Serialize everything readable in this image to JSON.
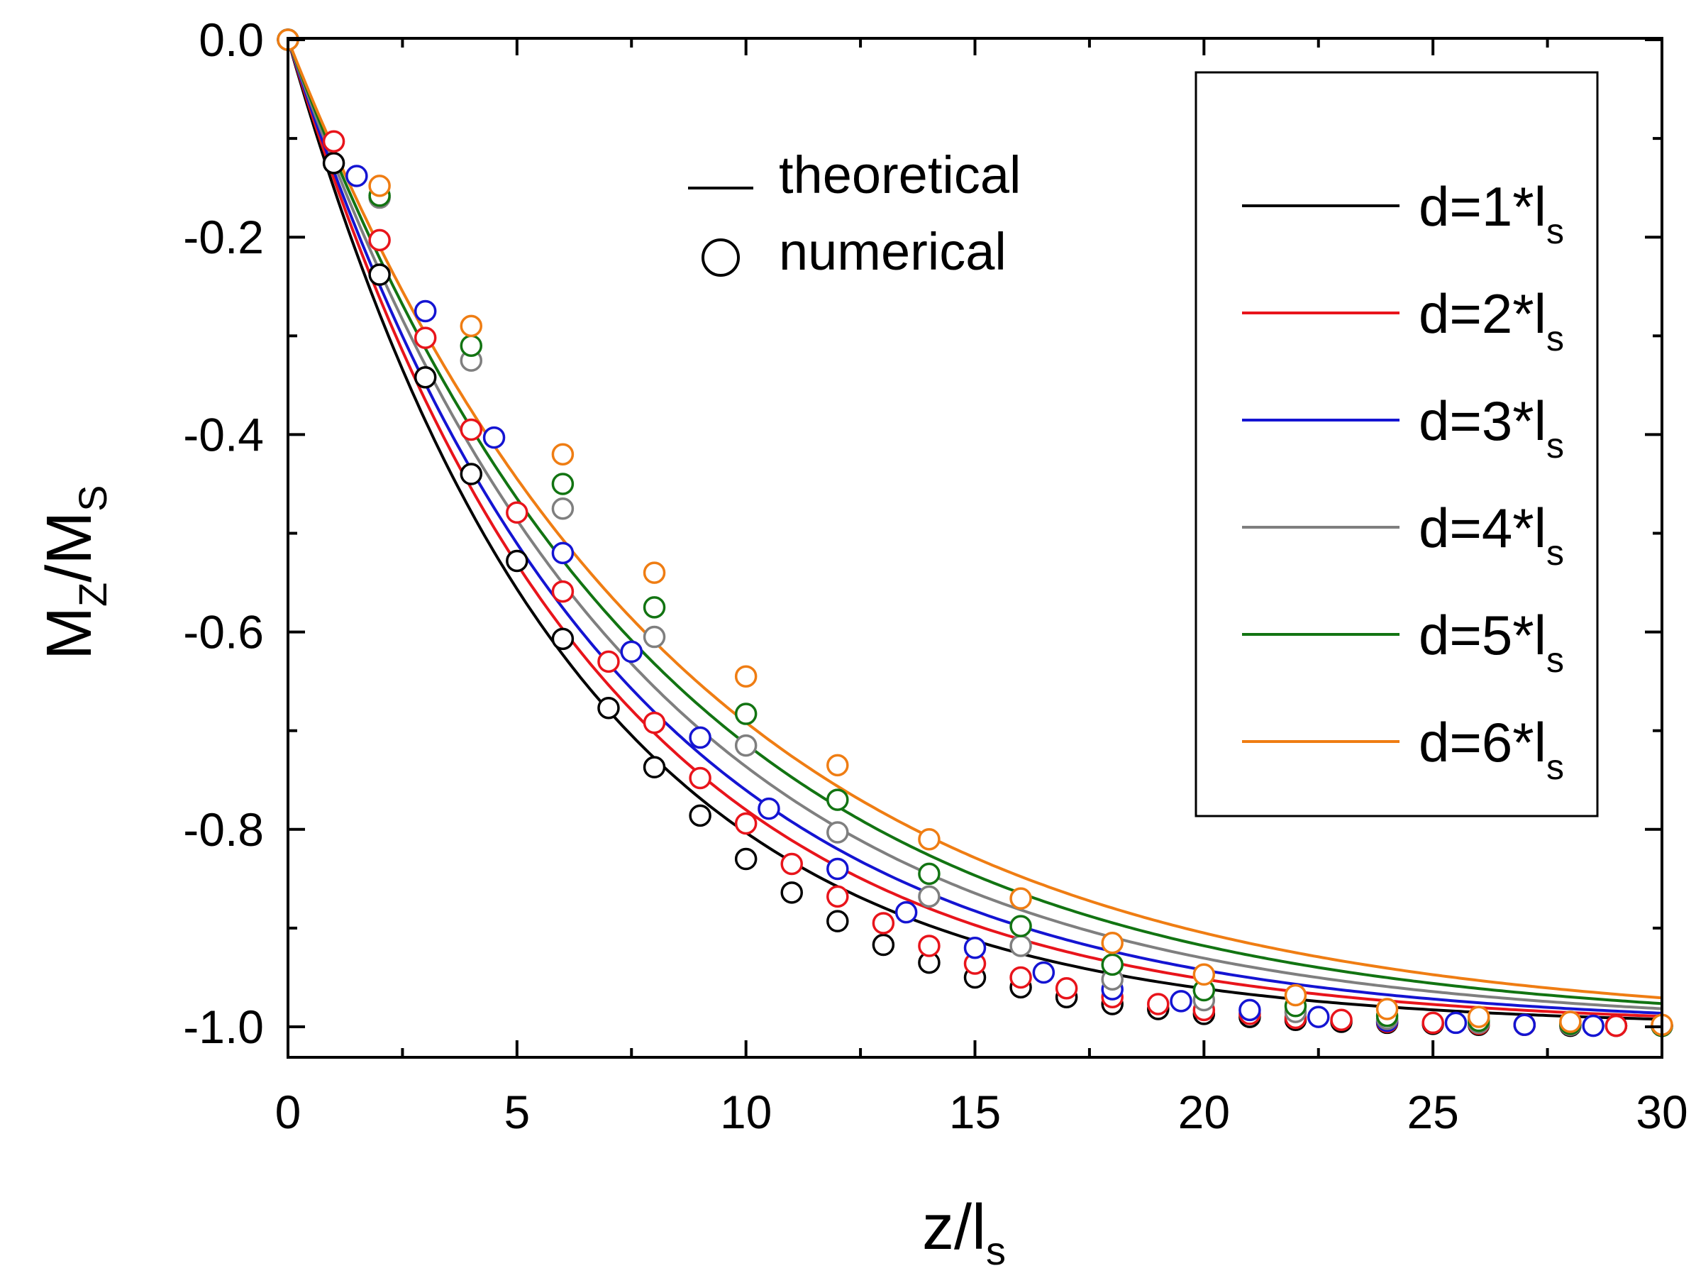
{
  "chart_data": {
    "type": "line",
    "x_axis": {
      "label_main": "z/l",
      "label_sub": "s",
      "range": [
        0,
        30
      ],
      "ticks": [
        0,
        5,
        10,
        15,
        20,
        25,
        30
      ],
      "tick_labels": [
        "0",
        "5",
        "10",
        "15",
        "20",
        "25",
        "30"
      ]
    },
    "y_axis": {
      "label_main1": "M",
      "label_sub1": "Z",
      "label_main2": "/M",
      "label_sub2": "S",
      "range": [
        -1.0,
        0.0
      ],
      "ticks": [
        0.0,
        -0.2,
        -0.4,
        -0.6,
        -0.8,
        -1.0
      ],
      "tick_labels": [
        "0.0",
        "-0.2",
        "-0.4",
        "-0.6",
        "-0.8",
        "-1.0"
      ]
    },
    "key": {
      "line_label": "theoretical",
      "marker_label": "numerical"
    },
    "series": [
      {
        "name_main": "d=1*l",
        "name_sub": "s",
        "color": "#000000",
        "curve_decay": 6.15,
        "points": [
          [
            0,
            0
          ],
          [
            1,
            -0.125
          ],
          [
            2,
            -0.238
          ],
          [
            3,
            -0.342
          ],
          [
            4,
            -0.44
          ],
          [
            5,
            -0.528
          ],
          [
            6,
            -0.607
          ],
          [
            7,
            -0.677
          ],
          [
            8,
            -0.737
          ],
          [
            9,
            -0.786
          ],
          [
            10,
            -0.83
          ],
          [
            11,
            -0.864
          ],
          [
            12,
            -0.893
          ],
          [
            13,
            -0.917
          ],
          [
            14,
            -0.935
          ],
          [
            15,
            -0.95
          ],
          [
            16,
            -0.96
          ],
          [
            17,
            -0.97
          ],
          [
            18,
            -0.977
          ],
          [
            19,
            -0.982
          ],
          [
            20,
            -0.987
          ],
          [
            21,
            -0.99
          ],
          [
            22,
            -0.993
          ],
          [
            23,
            -0.995
          ],
          [
            24,
            -0.996
          ],
          [
            25,
            -0.997
          ],
          [
            26,
            -0.998
          ],
          [
            27,
            -0.998
          ],
          [
            28,
            -0.999
          ],
          [
            29,
            -0.999
          ],
          [
            30,
            -0.999
          ]
        ]
      },
      {
        "name_main": "d=2*l",
        "name_sub": "s",
        "color": "#e8141b",
        "curve_decay": 6.6,
        "points": [
          [
            0,
            0
          ],
          [
            1,
            -0.103
          ],
          [
            2,
            -0.203
          ],
          [
            3,
            -0.302
          ],
          [
            4,
            -0.395
          ],
          [
            5,
            -0.479
          ],
          [
            6,
            -0.559
          ],
          [
            7,
            -0.63
          ],
          [
            8,
            -0.692
          ],
          [
            9,
            -0.748
          ],
          [
            10,
            -0.794
          ],
          [
            11,
            -0.835
          ],
          [
            12,
            -0.868
          ],
          [
            13,
            -0.895
          ],
          [
            14,
            -0.918
          ],
          [
            15,
            -0.936
          ],
          [
            16,
            -0.95
          ],
          [
            17,
            -0.961
          ],
          [
            18,
            -0.97
          ],
          [
            19,
            -0.977
          ],
          [
            20,
            -0.983
          ],
          [
            21,
            -0.987
          ],
          [
            22,
            -0.991
          ],
          [
            23,
            -0.993
          ],
          [
            24,
            -0.995
          ],
          [
            25,
            -0.996
          ],
          [
            26,
            -0.997
          ],
          [
            27,
            -0.998
          ],
          [
            28,
            -0.998
          ],
          [
            29,
            -0.999
          ],
          [
            30,
            -0.999
          ]
        ]
      },
      {
        "name_main": "d=3*l",
        "name_sub": "s",
        "color": "#1414d2",
        "curve_decay": 7.0,
        "points": [
          [
            0,
            0
          ],
          [
            1.5,
            -0.138
          ],
          [
            3,
            -0.275
          ],
          [
            4.5,
            -0.403
          ],
          [
            6,
            -0.52
          ],
          [
            7.5,
            -0.62
          ],
          [
            9,
            -0.707
          ],
          [
            10.5,
            -0.779
          ],
          [
            12,
            -0.84
          ],
          [
            13.5,
            -0.884
          ],
          [
            15,
            -0.92
          ],
          [
            16.5,
            -0.945
          ],
          [
            18,
            -0.962
          ],
          [
            19.5,
            -0.974
          ],
          [
            21,
            -0.983
          ],
          [
            22.5,
            -0.99
          ],
          [
            24,
            -0.994
          ],
          [
            25.5,
            -0.996
          ],
          [
            27,
            -0.998
          ],
          [
            28.5,
            -0.999
          ],
          [
            30,
            -0.999
          ]
        ]
      },
      {
        "name_main": "d=4*l",
        "name_sub": "s",
        "color": "#7f7f7f",
        "curve_decay": 7.5,
        "points": [
          [
            0,
            0
          ],
          [
            2,
            -0.16
          ],
          [
            4,
            -0.325
          ],
          [
            6,
            -0.475
          ],
          [
            8,
            -0.605
          ],
          [
            10,
            -0.715
          ],
          [
            12,
            -0.803
          ],
          [
            14,
            -0.868
          ],
          [
            16,
            -0.918
          ],
          [
            18,
            -0.952
          ],
          [
            20,
            -0.973
          ],
          [
            22,
            -0.985
          ],
          [
            24,
            -0.992
          ],
          [
            26,
            -0.996
          ],
          [
            28,
            -0.998
          ],
          [
            30,
            -0.999
          ]
        ]
      },
      {
        "name_main": "d=5*l",
        "name_sub": "s",
        "color": "#127412",
        "curve_decay": 8.0,
        "points": [
          [
            0,
            0
          ],
          [
            2,
            -0.158
          ],
          [
            4,
            -0.31
          ],
          [
            6,
            -0.45
          ],
          [
            8,
            -0.575
          ],
          [
            10,
            -0.683
          ],
          [
            12,
            -0.77
          ],
          [
            14,
            -0.845
          ],
          [
            16,
            -0.898
          ],
          [
            18,
            -0.937
          ],
          [
            20,
            -0.963
          ],
          [
            22,
            -0.979
          ],
          [
            24,
            -0.989
          ],
          [
            26,
            -0.994
          ],
          [
            28,
            -0.997
          ],
          [
            30,
            -0.999
          ]
        ]
      },
      {
        "name_main": "d=6*l",
        "name_sub": "s",
        "color": "#ef7d13",
        "curve_decay": 8.5,
        "points": [
          [
            0,
            0
          ],
          [
            2,
            -0.148
          ],
          [
            4,
            -0.29
          ],
          [
            6,
            -0.42
          ],
          [
            8,
            -0.54
          ],
          [
            10,
            -0.645
          ],
          [
            12,
            -0.735
          ],
          [
            14,
            -0.81
          ],
          [
            16,
            -0.87
          ],
          [
            18,
            -0.915
          ],
          [
            20,
            -0.947
          ],
          [
            22,
            -0.968
          ],
          [
            24,
            -0.982
          ],
          [
            26,
            -0.99
          ],
          [
            28,
            -0.995
          ],
          [
            30,
            -0.998
          ]
        ]
      }
    ]
  }
}
